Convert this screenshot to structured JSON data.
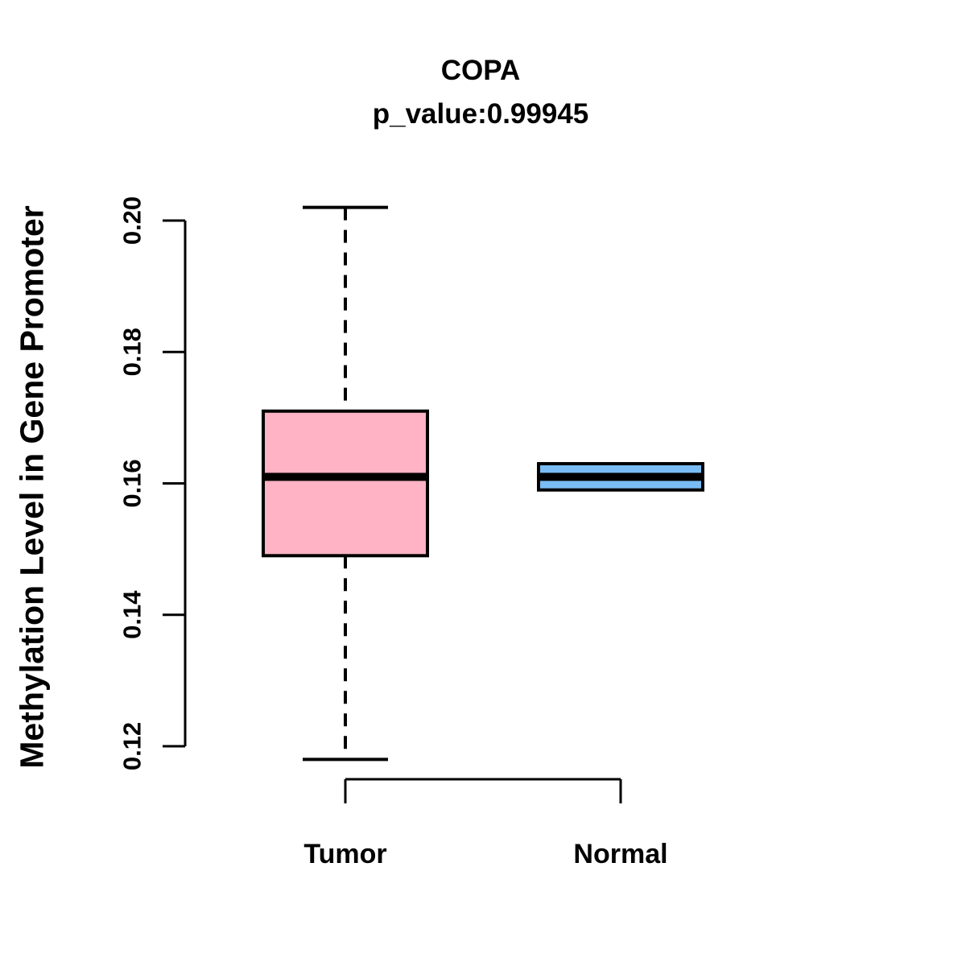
{
  "figure": {
    "title": "COPA",
    "subtitle": "p_value:0.99945",
    "y_axis_label": "Methylation Level in Gene Promoter"
  },
  "chart_data": {
    "type": "boxplot",
    "title": "COPA",
    "subtitle": "p_value:0.99945",
    "gene": "COPA",
    "p_value": "0.99945",
    "xlabel": "",
    "ylabel": "Methylation Level in Gene Promoter",
    "ylim": [
      0.12,
      0.2
    ],
    "y_ticks": [
      "0.12",
      "0.14",
      "0.16",
      "0.18",
      "0.20"
    ],
    "categories": [
      "Tumor",
      "Normal"
    ],
    "grid": false,
    "legend": null,
    "series": [
      {
        "name": "Tumor",
        "box_color": "#FFB3C4",
        "lower_whisker": 0.118,
        "q1": 0.149,
        "median": 0.161,
        "q3": 0.171,
        "upper_whisker": 0.202,
        "whiskers_visible": true
      },
      {
        "name": "Normal",
        "box_color": "#7ABCF5",
        "lower_whisker": null,
        "q1": 0.159,
        "median": 0.161,
        "q3": 0.163,
        "upper_whisker": null,
        "whiskers_visible": false
      }
    ]
  },
  "colors": {
    "tumor_box": "#FFB3C4",
    "normal_box": "#7ABCF5",
    "line": "#000000",
    "background": "#FFFFFF"
  }
}
